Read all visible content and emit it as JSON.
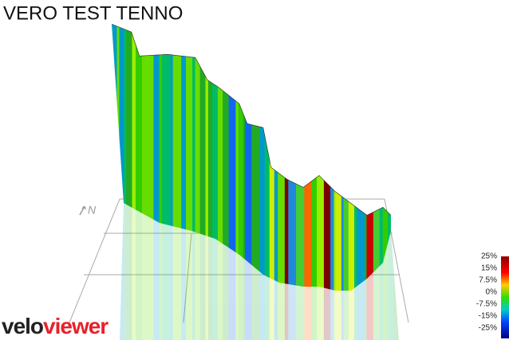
{
  "header": {
    "title": "VERO TEST TENNO"
  },
  "compass": {
    "label": "N"
  },
  "legend": {
    "labels": [
      "25%",
      "15%",
      "7.5%",
      "0%",
      "-7.5%",
      "-15%",
      "-25%"
    ]
  },
  "logo": {
    "part1": "velo",
    "part2": "viewer"
  }
}
